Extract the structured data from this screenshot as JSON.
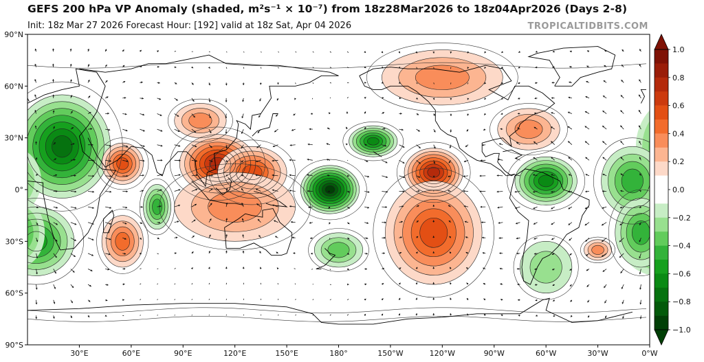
{
  "header": {
    "title": "GEFS 200 hPa VP Anomaly (shaded, m²s⁻¹ × 10⁻⁷) from 18z28Mar2026 to 18z04Apr2026 (Days 2-8)",
    "subtitle": "Init: 18z Mar 27 2026   Forecast Hour: [192]   valid at 18z Sat, Apr 04 2026",
    "brand": "TROPICALTIDBITS.COM"
  },
  "map": {
    "lat_ticks": [
      "90°N",
      "60°N",
      "30°N",
      "0°",
      "30°S",
      "60°S",
      "90°S"
    ],
    "lon_ticks": [
      "30°E",
      "60°E",
      "90°E",
      "120°E",
      "150°E",
      "180°",
      "150°W",
      "120°W",
      "90°W",
      "60°W",
      "30°W",
      "0°W"
    ],
    "anomaly_centers": [
      {
        "lon": 20,
        "lat": 25,
        "value": -0.7,
        "rx": 28,
        "ry": 30
      },
      {
        "lon": 5,
        "lat": -30,
        "value": -0.45,
        "rx": 22,
        "ry": 20
      },
      {
        "lon": 55,
        "lat": 15,
        "value": 0.45,
        "rx": 12,
        "ry": 12
      },
      {
        "lon": 75,
        "lat": -10,
        "value": -0.4,
        "rx": 8,
        "ry": 13
      },
      {
        "lon": 55,
        "lat": -30,
        "value": 0.4,
        "rx": 12,
        "ry": 15
      },
      {
        "lon": 110,
        "lat": 15,
        "value": 0.65,
        "rx": 22,
        "ry": 17
      },
      {
        "lon": 130,
        "lat": 10,
        "value": 0.5,
        "rx": 20,
        "ry": 15
      },
      {
        "lon": 120,
        "lat": -10,
        "value": 0.3,
        "rx": 35,
        "ry": 20
      },
      {
        "lon": 175,
        "lat": 0,
        "value": -0.85,
        "rx": 17,
        "ry": 14
      },
      {
        "lon": -160,
        "lat": 28,
        "value": -0.55,
        "rx": 14,
        "ry": 9
      },
      {
        "lon": -180,
        "lat": -35,
        "value": -0.25,
        "rx": 14,
        "ry": 10
      },
      {
        "lon": -125,
        "lat": 10,
        "value": 0.7,
        "rx": 17,
        "ry": 14
      },
      {
        "lon": -125,
        "lat": -25,
        "value": 0.45,
        "rx": 28,
        "ry": 30
      },
      {
        "lon": -120,
        "lat": 65,
        "value": 0.25,
        "rx": 35,
        "ry": 16
      },
      {
        "lon": -70,
        "lat": 35,
        "value": 0.3,
        "rx": 18,
        "ry": 12
      },
      {
        "lon": -60,
        "lat": 5,
        "value": -0.6,
        "rx": 18,
        "ry": 14
      },
      {
        "lon": -10,
        "lat": 5,
        "value": -0.4,
        "rx": 18,
        "ry": 20
      },
      {
        "lon": -5,
        "lat": -25,
        "value": -0.4,
        "rx": 15,
        "ry": 20
      },
      {
        "lon": -30,
        "lat": -35,
        "value": 0.3,
        "rx": 8,
        "ry": 6
      },
      {
        "lon": -60,
        "lat": -45,
        "value": -0.2,
        "rx": 15,
        "ry": 15
      },
      {
        "lon": 100,
        "lat": 40,
        "value": 0.3,
        "rx": 15,
        "ry": 10
      }
    ]
  },
  "colorbar": {
    "ticks": [
      "1.0",
      "0.8",
      "0.6",
      "0.4",
      "0.2",
      "0.0",
      "−0.2",
      "−0.4",
      "−0.6",
      "−0.8",
      "−1.0"
    ],
    "colors_pos": [
      "#fdd9c8",
      "#fcb591",
      "#f98d5a",
      "#f26c2c",
      "#e34f14",
      "#cc3a0e",
      "#b42a0b",
      "#9a1d08",
      "#7f1205"
    ],
    "colors_neg": [
      "#c7edc5",
      "#98e08f",
      "#62cc5c",
      "#33b33a",
      "#16a01e",
      "#0a8a14",
      "#06720f",
      "#035a0a",
      "#013f06"
    ]
  }
}
